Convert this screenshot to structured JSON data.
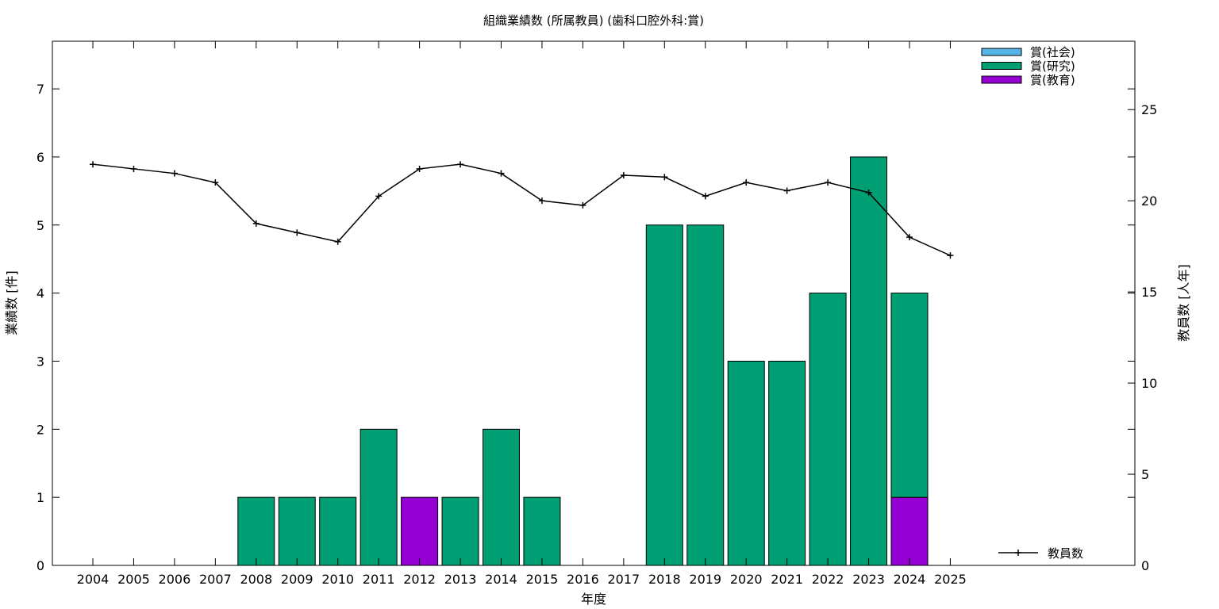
{
  "chart_data": {
    "type": "bar",
    "title": "組織業績数 (所属教員) (歯科口腔外科:賞)",
    "xlabel": "年度",
    "ylabel": "業績数 [件]",
    "y2label": "教員数 [人年]",
    "categories": [
      "2004",
      "2005",
      "2006",
      "2007",
      "2008",
      "2009",
      "2010",
      "2011",
      "2012",
      "2013",
      "2014",
      "2015",
      "2016",
      "2017",
      "2018",
      "2019",
      "2020",
      "2021",
      "2022",
      "2023",
      "2024",
      "2025"
    ],
    "ylim": [
      0,
      7.7
    ],
    "y2lim": [
      0,
      28.75
    ],
    "yticks": [
      0,
      1,
      2,
      3,
      4,
      5,
      6,
      7
    ],
    "y2ticks": [
      0,
      5,
      10,
      15,
      20,
      25
    ],
    "stacked": true,
    "series": [
      {
        "name": "賞(教育)",
        "color": "#9400d3",
        "values": [
          0,
          0,
          0,
          0,
          0,
          0,
          0,
          0,
          1,
          0,
          0,
          0,
          0,
          0,
          0,
          0,
          0,
          0,
          0,
          0,
          1,
          0
        ]
      },
      {
        "name": "賞(研究)",
        "color": "#009e73",
        "values": [
          0,
          0,
          0,
          0,
          1,
          1,
          1,
          2,
          0,
          1,
          2,
          1,
          0,
          0,
          5,
          5,
          3,
          3,
          4,
          6,
          3,
          0
        ]
      },
      {
        "name": "賞(社会)",
        "color": "#56b4e9",
        "values": [
          0,
          0,
          0,
          0,
          0,
          0,
          0,
          0,
          0,
          0,
          0,
          0,
          0,
          0,
          0,
          0,
          0,
          0,
          0,
          0,
          0,
          0
        ]
      }
    ],
    "line_series": {
      "name": "教員数",
      "axis": "y2",
      "color": "#000000",
      "values": [
        22.0,
        21.75,
        21.5,
        21.0,
        18.75,
        18.25,
        17.75,
        20.25,
        21.75,
        22.0,
        21.5,
        20.0,
        19.75,
        21.4,
        21.3,
        20.25,
        21.0,
        20.55,
        21.0,
        20.45,
        18.0,
        17.0
      ]
    },
    "legend_order": [
      "賞(社会)",
      "賞(研究)",
      "賞(教育)"
    ],
    "legend_position": "top-right",
    "line_legend_position": "bottom-right",
    "grid": false
  }
}
